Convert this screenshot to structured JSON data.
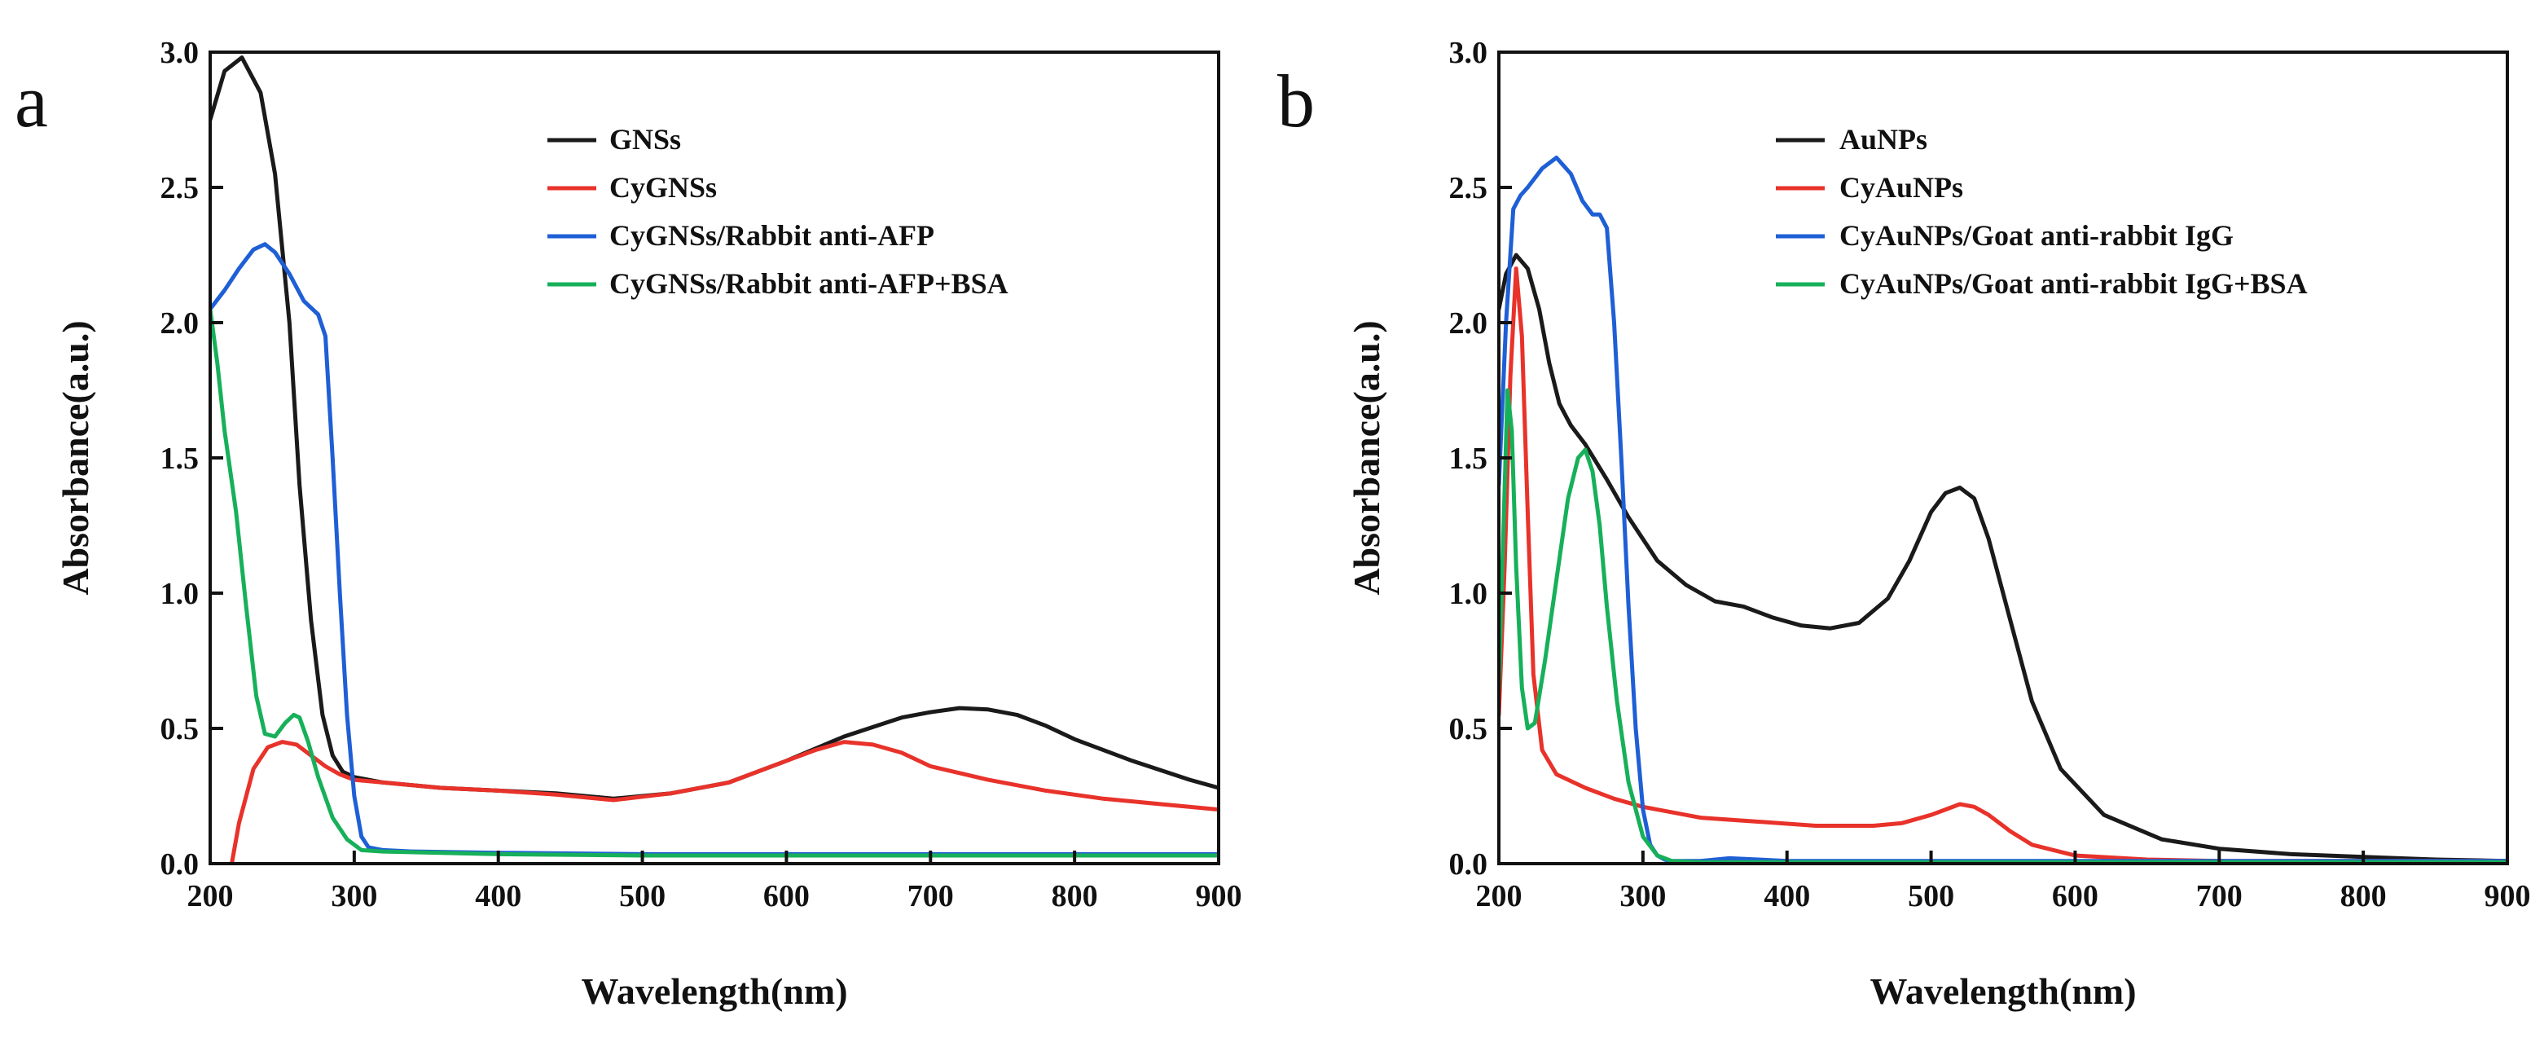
{
  "chart_data": [
    {
      "type": "line",
      "panel_label": "a",
      "xlabel": "Wavelength(nm)",
      "ylabel": "Absorbance(a.u.)",
      "xlim": [
        200,
        900
      ],
      "ylim": [
        0,
        3.0
      ],
      "xticks": [
        200,
        300,
        400,
        500,
        600,
        700,
        800,
        900
      ],
      "yticks": [
        0.0,
        0.5,
        1.0,
        1.5,
        2.0,
        2.5,
        3.0
      ],
      "xtick_labels": [
        "200",
        "300",
        "400",
        "500",
        "600",
        "700",
        "800",
        "900"
      ],
      "ytick_labels": [
        "0.0",
        "0.5",
        "1.0",
        "1.5",
        "2.0",
        "2.5",
        "3.0"
      ],
      "legend_position": "upper-right",
      "series": [
        {
          "name": "GNSs",
          "color": "#1a1a1a",
          "x": [
            200,
            210,
            222,
            235,
            245,
            255,
            262,
            270,
            278,
            285,
            292,
            300,
            320,
            360,
            400,
            440,
            480,
            520,
            560,
            600,
            640,
            680,
            700,
            720,
            740,
            760,
            780,
            800,
            840,
            880,
            900
          ],
          "y": [
            2.75,
            2.93,
            2.98,
            2.85,
            2.55,
            2.0,
            1.4,
            0.9,
            0.55,
            0.4,
            0.34,
            0.32,
            0.3,
            0.28,
            0.27,
            0.26,
            0.24,
            0.26,
            0.3,
            0.38,
            0.47,
            0.54,
            0.56,
            0.575,
            0.57,
            0.55,
            0.51,
            0.46,
            0.38,
            0.31,
            0.28
          ]
        },
        {
          "name": "CyGNSs",
          "color": "#e8322a",
          "x": [
            215,
            220,
            230,
            240,
            250,
            260,
            270,
            280,
            290,
            300,
            320,
            360,
            400,
            440,
            480,
            520,
            560,
            600,
            620,
            640,
            660,
            680,
            700,
            740,
            780,
            820,
            860,
            900
          ],
          "y": [
            0.0,
            0.15,
            0.35,
            0.43,
            0.45,
            0.44,
            0.4,
            0.36,
            0.33,
            0.31,
            0.3,
            0.28,
            0.27,
            0.255,
            0.235,
            0.26,
            0.3,
            0.38,
            0.42,
            0.45,
            0.44,
            0.41,
            0.36,
            0.31,
            0.27,
            0.24,
            0.22,
            0.2
          ]
        },
        {
          "name": "CyGNSs/Rabbit anti-AFP",
          "color": "#1f5fd6",
          "x": [
            200,
            210,
            220,
            230,
            238,
            245,
            255,
            265,
            275,
            280,
            285,
            290,
            295,
            300,
            305,
            310,
            320,
            340,
            400,
            500,
            600,
            700,
            800,
            900
          ],
          "y": [
            2.05,
            2.12,
            2.2,
            2.27,
            2.29,
            2.26,
            2.18,
            2.08,
            2.03,
            1.95,
            1.5,
            1.0,
            0.55,
            0.25,
            0.1,
            0.06,
            0.05,
            0.045,
            0.04,
            0.035,
            0.035,
            0.035,
            0.035,
            0.035
          ]
        },
        {
          "name": "CyGNSs/Rabbit anti-AFP+BSA",
          "color": "#17b05a",
          "x": [
            200,
            205,
            210,
            218,
            225,
            232,
            238,
            245,
            252,
            258,
            262,
            268,
            275,
            285,
            295,
            305,
            320,
            360,
            400,
            500,
            600,
            700,
            800,
            900
          ],
          "y": [
            2.05,
            1.85,
            1.6,
            1.3,
            0.95,
            0.62,
            0.48,
            0.47,
            0.52,
            0.55,
            0.54,
            0.45,
            0.32,
            0.17,
            0.09,
            0.05,
            0.045,
            0.04,
            0.035,
            0.03,
            0.03,
            0.03,
            0.03,
            0.03
          ]
        }
      ]
    },
    {
      "type": "line",
      "panel_label": "b",
      "xlabel": "Wavelength(nm)",
      "ylabel": "Absorbance(a.u.)",
      "xlim": [
        200,
        900
      ],
      "ylim": [
        0,
        3.0
      ],
      "xticks": [
        200,
        300,
        400,
        500,
        600,
        700,
        800,
        900
      ],
      "yticks": [
        0.0,
        0.5,
        1.0,
        1.5,
        2.0,
        2.5,
        3.0
      ],
      "xtick_labels": [
        "200",
        "300",
        "400",
        "500",
        "600",
        "700",
        "800",
        "900"
      ],
      "ytick_labels": [
        "0.0",
        "0.5",
        "1.0",
        "1.5",
        "2.0",
        "2.5",
        "3.0"
      ],
      "legend_position": "upper-right",
      "series": [
        {
          "name": "AuNPs",
          "color": "#1a1a1a",
          "x": [
            200,
            205,
            212,
            220,
            228,
            235,
            242,
            250,
            260,
            275,
            290,
            310,
            330,
            350,
            370,
            390,
            410,
            430,
            450,
            470,
            485,
            500,
            510,
            520,
            530,
            540,
            555,
            570,
            590,
            620,
            660,
            700,
            750,
            800,
            850,
            900
          ],
          "y": [
            2.05,
            2.18,
            2.25,
            2.2,
            2.05,
            1.85,
            1.7,
            1.62,
            1.55,
            1.42,
            1.28,
            1.12,
            1.03,
            0.97,
            0.95,
            0.91,
            0.88,
            0.87,
            0.89,
            0.98,
            1.12,
            1.3,
            1.37,
            1.39,
            1.35,
            1.2,
            0.9,
            0.6,
            0.35,
            0.18,
            0.09,
            0.055,
            0.035,
            0.025,
            0.015,
            0.01
          ]
        },
        {
          "name": "CyAuNPs",
          "color": "#e8322a",
          "x": [
            200,
            204,
            208,
            212,
            216,
            220,
            224,
            230,
            240,
            260,
            280,
            300,
            340,
            380,
            420,
            460,
            480,
            500,
            510,
            520,
            530,
            540,
            555,
            570,
            600,
            650,
            700,
            800,
            900
          ],
          "y": [
            0.55,
            1.1,
            1.8,
            2.2,
            1.95,
            1.3,
            0.7,
            0.42,
            0.33,
            0.28,
            0.24,
            0.21,
            0.17,
            0.155,
            0.14,
            0.14,
            0.15,
            0.18,
            0.2,
            0.22,
            0.21,
            0.18,
            0.12,
            0.07,
            0.03,
            0.015,
            0.01,
            0.01,
            0.01
          ]
        },
        {
          "name": "CyAuNPs/Goat anti-rabbit IgG",
          "color": "#1f5fd6",
          "x": [
            200,
            205,
            210,
            215,
            220,
            230,
            240,
            250,
            258,
            265,
            270,
            275,
            280,
            285,
            290,
            295,
            300,
            305,
            310,
            315,
            320,
            340,
            360,
            380,
            400,
            500,
            600,
            700,
            800,
            900
          ],
          "y": [
            1.4,
            2.0,
            2.42,
            2.47,
            2.5,
            2.57,
            2.61,
            2.55,
            2.45,
            2.4,
            2.4,
            2.35,
            2.0,
            1.5,
            0.95,
            0.5,
            0.2,
            0.07,
            0.03,
            0.015,
            0.01,
            0.01,
            0.02,
            0.015,
            0.01,
            0.01,
            0.01,
            0.01,
            0.01,
            0.01
          ]
        },
        {
          "name": "CyAuNPs/Goat anti-rabbit IgG+BSA",
          "color": "#17b05a",
          "x": [
            200,
            203,
            206,
            209,
            212,
            216,
            220,
            225,
            232,
            240,
            248,
            255,
            260,
            265,
            270,
            275,
            282,
            290,
            300,
            310,
            320,
            340,
            400,
            500,
            600,
            700,
            800,
            900
          ],
          "y": [
            0.65,
            1.2,
            1.75,
            1.6,
            1.1,
            0.65,
            0.5,
            0.52,
            0.75,
            1.05,
            1.35,
            1.5,
            1.53,
            1.45,
            1.25,
            0.95,
            0.6,
            0.3,
            0.1,
            0.03,
            0.01,
            0.005,
            0.005,
            0.005,
            0.005,
            0.005,
            0.005,
            0.005
          ]
        }
      ]
    }
  ]
}
